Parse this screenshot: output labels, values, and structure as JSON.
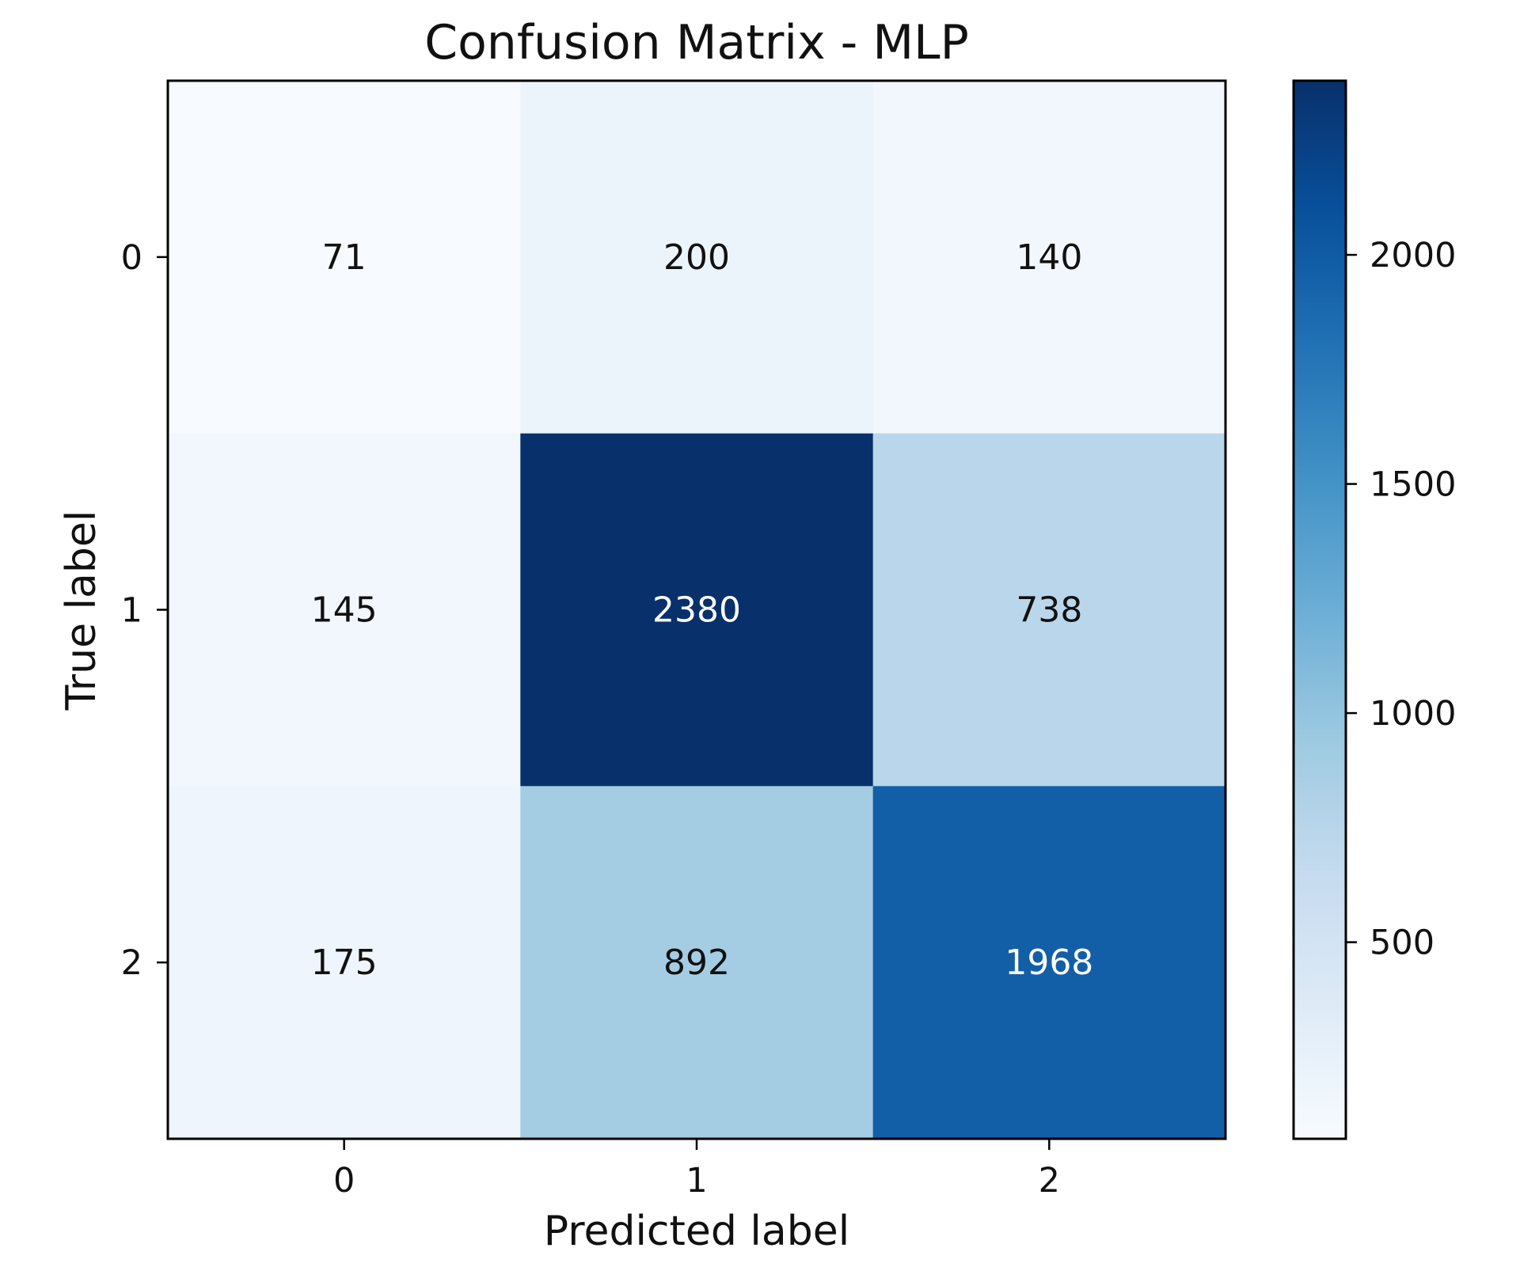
{
  "chart_data": {
    "type": "heatmap",
    "title": "Confusion Matrix - MLP",
    "xlabel": "Predicted label",
    "ylabel": "True label",
    "x_categories": [
      "0",
      "1",
      "2"
    ],
    "y_categories": [
      "0",
      "1",
      "2"
    ],
    "values": [
      [
        71,
        200,
        140
      ],
      [
        145,
        2380,
        738
      ],
      [
        175,
        892,
        1968
      ]
    ],
    "colormap": "Blues",
    "colorbar": {
      "min": 71,
      "max": 2380,
      "ticks": [
        500,
        1000,
        1500,
        2000
      ],
      "tick_labels": [
        "500",
        "1000",
        "1500",
        "2000"
      ]
    },
    "grid": false
  }
}
